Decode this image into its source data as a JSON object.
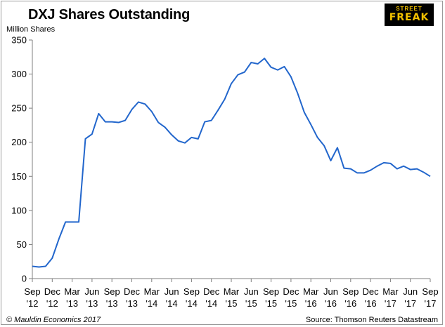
{
  "header": {
    "title": "DXJ Shares Outstanding"
  },
  "logo": {
    "top": "STREET",
    "bottom": "FREAK"
  },
  "footer": {
    "left": "© Mauldin Economics 2017",
    "right": "Source: Thomson Reuters Datastream"
  },
  "colors": {
    "line": "#2266cc",
    "axis": "#7f7f7f"
  },
  "chart_data": {
    "type": "line",
    "title": "DXJ Shares Outstanding",
    "ylabel": "Million Shares",
    "ylim": [
      0,
      350
    ],
    "yticks": [
      0,
      50,
      100,
      150,
      200,
      250,
      300,
      350
    ],
    "grid": false,
    "legend": "none",
    "xticks": [
      {
        "top": "Sep",
        "bottom": "'12",
        "pos": 0
      },
      {
        "top": "Dec",
        "bottom": "'12",
        "pos": 3
      },
      {
        "top": "Mar",
        "bottom": "'13",
        "pos": 6
      },
      {
        "top": "Jun",
        "bottom": "'13",
        "pos": 9
      },
      {
        "top": "Sep",
        "bottom": "'13",
        "pos": 12
      },
      {
        "top": "Dec",
        "bottom": "'13",
        "pos": 15
      },
      {
        "top": "Mar",
        "bottom": "'14",
        "pos": 18
      },
      {
        "top": "Jun",
        "bottom": "'14",
        "pos": 21
      },
      {
        "top": "Sep",
        "bottom": "'14",
        "pos": 24
      },
      {
        "top": "Dec",
        "bottom": "'14",
        "pos": 27
      },
      {
        "top": "Mar",
        "bottom": "'15",
        "pos": 30
      },
      {
        "top": "Jun",
        "bottom": "'15",
        "pos": 33
      },
      {
        "top": "Sep",
        "bottom": "'15",
        "pos": 36
      },
      {
        "top": "Dec",
        "bottom": "'15",
        "pos": 39
      },
      {
        "top": "Mar",
        "bottom": "'16",
        "pos": 42
      },
      {
        "top": "Jun",
        "bottom": "'16",
        "pos": 45
      },
      {
        "top": "Sep",
        "bottom": "'16",
        "pos": 48
      },
      {
        "top": "Dec",
        "bottom": "'16",
        "pos": 51
      },
      {
        "top": "Mar",
        "bottom": "'17",
        "pos": 54
      },
      {
        "top": "Jun",
        "bottom": "'17",
        "pos": 57
      },
      {
        "top": "Sep",
        "bottom": "'17",
        "pos": 60
      }
    ],
    "x": [
      0,
      1,
      2,
      3,
      4,
      5,
      6,
      7,
      8,
      9,
      10,
      11,
      12,
      13,
      14,
      15,
      16,
      17,
      18,
      19,
      20,
      21,
      22,
      23,
      24,
      25,
      26,
      27,
      28,
      29,
      30,
      31,
      32,
      33,
      34,
      35,
      36,
      37,
      38,
      39,
      40,
      41,
      42,
      43,
      44,
      45,
      46,
      47,
      48,
      49,
      50,
      51,
      52,
      53,
      54,
      55,
      56,
      57,
      58,
      59,
      60
    ],
    "series": [
      {
        "values": [
          18,
          17,
          18,
          30,
          58,
          83,
          83,
          83,
          205,
          212,
          242,
          230,
          230,
          229,
          232,
          248,
          259,
          256,
          245,
          229,
          222,
          211,
          202,
          199,
          207,
          205,
          230,
          232,
          247,
          263,
          286,
          299,
          303,
          317,
          315,
          323,
          310,
          306,
          311,
          296,
          272,
          244,
          226,
          207,
          195,
          173,
          192,
          162,
          161,
          155,
          155,
          159,
          165,
          170,
          169,
          161,
          165,
          160,
          161,
          156,
          150
        ]
      }
    ]
  }
}
